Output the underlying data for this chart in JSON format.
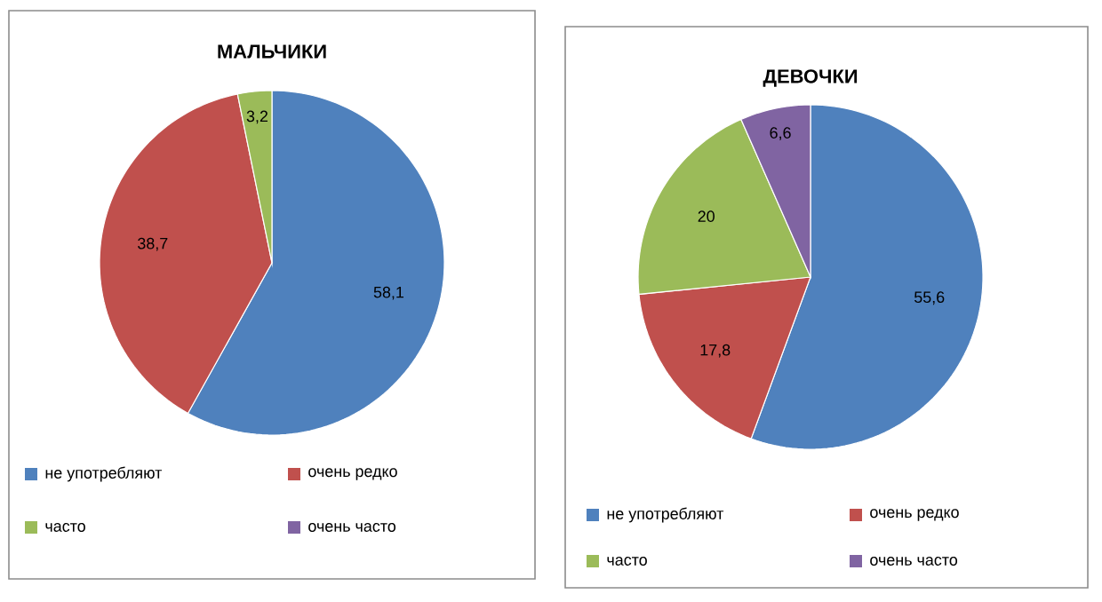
{
  "chart_data": [
    {
      "type": "pie",
      "title": "МАЛЬЧИКИ",
      "categories": [
        "не употребляют",
        "очень редко",
        "часто",
        "очень часто"
      ],
      "values": [
        58.1,
        38.7,
        3.2,
        null
      ],
      "value_labels": [
        "58,1",
        "38,7",
        "3,2",
        null
      ],
      "colors": [
        "#4f81bd",
        "#c0504d",
        "#9bbb59",
        "#8064a2"
      ],
      "legend": "bottom"
    },
    {
      "type": "pie",
      "title": "ДЕВОЧКИ",
      "categories": [
        "не употребляют",
        "очень редко",
        "часто",
        "очень часто"
      ],
      "values": [
        55.6,
        17.8,
        20,
        6.6
      ],
      "value_labels": [
        "55,6",
        "17,8",
        "20",
        "6,6"
      ],
      "colors": [
        "#4f81bd",
        "#c0504d",
        "#9bbb59",
        "#8064a2"
      ],
      "legend": "bottom"
    }
  ]
}
